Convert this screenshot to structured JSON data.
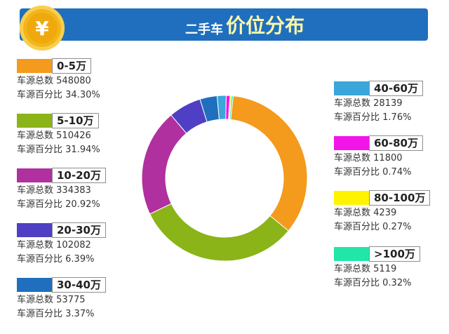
{
  "header": {
    "currency_symbol": "¥",
    "title_part1": "二手车",
    "title_part2": "价位分布"
  },
  "chart_data": {
    "type": "pie",
    "title": "二手车价位分布",
    "stat_count_label": "车源总数",
    "stat_pct_label": "车源百分比",
    "slices": [
      {
        "label": "0-5万",
        "count": 548080,
        "percent": 34.3,
        "percent_text": "34.30%",
        "color": "#f49a1c"
      },
      {
        "label": "5-10万",
        "count": 510426,
        "percent": 31.94,
        "percent_text": "31.94%",
        "color": "#8ab418"
      },
      {
        "label": "10-20万",
        "count": 334383,
        "percent": 20.92,
        "percent_text": "20.92%",
        "color": "#b0309f"
      },
      {
        "label": "20-30万",
        "count": 102082,
        "percent": 6.39,
        "percent_text": "6.39%",
        "color": "#4f3fc4"
      },
      {
        "label": "30-40万",
        "count": 53775,
        "percent": 3.37,
        "percent_text": "3.37%",
        "color": "#1f6fbe"
      },
      {
        "label": "40-60万",
        "count": 28139,
        "percent": 1.76,
        "percent_text": "1.76%",
        "color": "#3aa6d9"
      },
      {
        "label": "60-80万",
        "count": 11800,
        "percent": 0.74,
        "percent_text": "0.74%",
        "color": "#f315e8"
      },
      {
        "label": "80-100万",
        "count": 4239,
        "percent": 0.27,
        "percent_text": "0.27%",
        "color": "#fff400"
      },
      {
        "label": ">100万",
        "count": 5119,
        "percent": 0.32,
        "percent_text": "0.32%",
        "color": "#22e6a8"
      }
    ]
  }
}
